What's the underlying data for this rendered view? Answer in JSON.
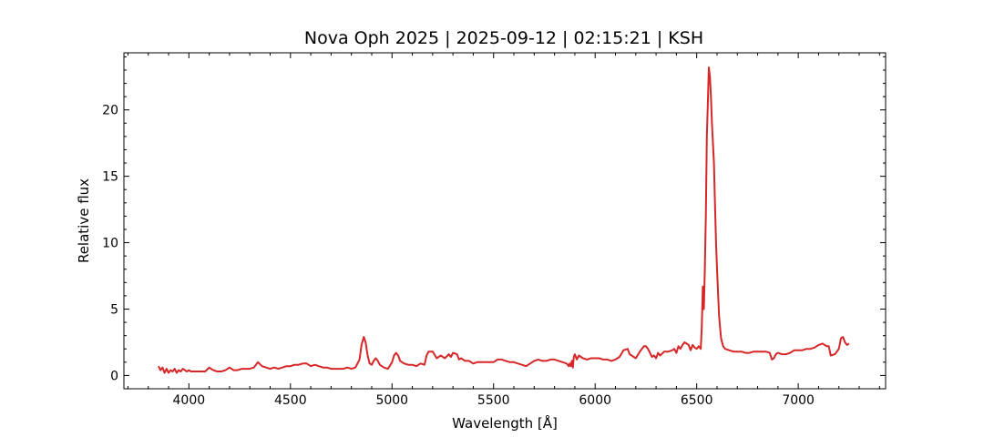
{
  "chart_data": {
    "type": "line",
    "title": "Nova Oph 2025 | 2025-09-12 | 02:15:21 | KSH",
    "xlabel": "Wavelength [Å]",
    "ylabel": "Relative flux",
    "xlim": [
      3680,
      7430
    ],
    "ylim": [
      -1.0,
      24.3
    ],
    "x_ticks": [
      4000,
      4500,
      5000,
      5500,
      6000,
      6500,
      7000
    ],
    "x_tick_labels": [
      "4000",
      "4500",
      "5000",
      "5500",
      "6000",
      "6500",
      "7000"
    ],
    "y_ticks": [
      0,
      5,
      10,
      15,
      20
    ],
    "y_tick_labels": [
      "0",
      "5",
      "10",
      "15",
      "20"
    ],
    "x_minor_step": 100,
    "y_minor_step": 1,
    "tick_direction": "in",
    "ticks_on_all_sides": true,
    "grid": false,
    "series": [
      {
        "color": "#d62728",
        "points": [
          [
            3850,
            0.7
          ],
          [
            3860,
            0.4
          ],
          [
            3870,
            0.6
          ],
          [
            3880,
            0.2
          ],
          [
            3890,
            0.5
          ],
          [
            3900,
            0.2
          ],
          [
            3910,
            0.4
          ],
          [
            3920,
            0.3
          ],
          [
            3930,
            0.5
          ],
          [
            3940,
            0.2
          ],
          [
            3950,
            0.4
          ],
          [
            3960,
            0.3
          ],
          [
            3970,
            0.5
          ],
          [
            3980,
            0.4
          ],
          [
            3990,
            0.3
          ],
          [
            4000,
            0.4
          ],
          [
            4010,
            0.3
          ],
          [
            4020,
            0.3
          ],
          [
            4040,
            0.3
          ],
          [
            4060,
            0.3
          ],
          [
            4080,
            0.3
          ],
          [
            4100,
            0.6
          ],
          [
            4120,
            0.4
          ],
          [
            4140,
            0.3
          ],
          [
            4160,
            0.3
          ],
          [
            4180,
            0.4
          ],
          [
            4200,
            0.6
          ],
          [
            4220,
            0.4
          ],
          [
            4240,
            0.4
          ],
          [
            4260,
            0.5
          ],
          [
            4280,
            0.5
          ],
          [
            4300,
            0.5
          ],
          [
            4320,
            0.6
          ],
          [
            4340,
            1.0
          ],
          [
            4360,
            0.7
          ],
          [
            4380,
            0.6
          ],
          [
            4400,
            0.5
          ],
          [
            4420,
            0.6
          ],
          [
            4440,
            0.5
          ],
          [
            4460,
            0.6
          ],
          [
            4480,
            0.7
          ],
          [
            4500,
            0.7
          ],
          [
            4520,
            0.8
          ],
          [
            4540,
            0.8
          ],
          [
            4560,
            0.9
          ],
          [
            4580,
            0.9
          ],
          [
            4600,
            0.7
          ],
          [
            4620,
            0.8
          ],
          [
            4640,
            0.7
          ],
          [
            4660,
            0.6
          ],
          [
            4680,
            0.6
          ],
          [
            4700,
            0.5
          ],
          [
            4720,
            0.5
          ],
          [
            4740,
            0.5
          ],
          [
            4760,
            0.5
          ],
          [
            4780,
            0.6
          ],
          [
            4800,
            0.5
          ],
          [
            4820,
            0.6
          ],
          [
            4840,
            1.2
          ],
          [
            4850,
            2.3
          ],
          [
            4861,
            2.9
          ],
          [
            4870,
            2.5
          ],
          [
            4880,
            1.5
          ],
          [
            4890,
            0.9
          ],
          [
            4900,
            0.8
          ],
          [
            4910,
            1.1
          ],
          [
            4920,
            1.3
          ],
          [
            4930,
            1.1
          ],
          [
            4940,
            0.8
          ],
          [
            4960,
            0.6
          ],
          [
            4980,
            0.5
          ],
          [
            5000,
            1.0
          ],
          [
            5010,
            1.5
          ],
          [
            5020,
            1.7
          ],
          [
            5030,
            1.5
          ],
          [
            5040,
            1.1
          ],
          [
            5060,
            0.9
          ],
          [
            5080,
            0.8
          ],
          [
            5100,
            0.8
          ],
          [
            5120,
            0.7
          ],
          [
            5140,
            0.9
          ],
          [
            5160,
            0.8
          ],
          [
            5170,
            1.5
          ],
          [
            5180,
            1.8
          ],
          [
            5200,
            1.8
          ],
          [
            5220,
            1.3
          ],
          [
            5240,
            1.5
          ],
          [
            5260,
            1.3
          ],
          [
            5280,
            1.6
          ],
          [
            5290,
            1.4
          ],
          [
            5300,
            1.7
          ],
          [
            5320,
            1.6
          ],
          [
            5330,
            1.2
          ],
          [
            5340,
            1.3
          ],
          [
            5360,
            1.1
          ],
          [
            5380,
            1.1
          ],
          [
            5400,
            0.9
          ],
          [
            5420,
            1.0
          ],
          [
            5440,
            1.0
          ],
          [
            5460,
            1.0
          ],
          [
            5480,
            1.0
          ],
          [
            5500,
            1.0
          ],
          [
            5520,
            1.2
          ],
          [
            5540,
            1.2
          ],
          [
            5560,
            1.1
          ],
          [
            5580,
            1.0
          ],
          [
            5600,
            1.0
          ],
          [
            5620,
            0.9
          ],
          [
            5640,
            0.8
          ],
          [
            5660,
            0.7
          ],
          [
            5680,
            0.9
          ],
          [
            5700,
            1.1
          ],
          [
            5720,
            1.2
          ],
          [
            5740,
            1.1
          ],
          [
            5760,
            1.1
          ],
          [
            5780,
            1.2
          ],
          [
            5800,
            1.2
          ],
          [
            5820,
            1.1
          ],
          [
            5840,
            1.0
          ],
          [
            5860,
            0.9
          ],
          [
            5870,
            0.7
          ],
          [
            5875,
            0.9
          ],
          [
            5880,
            0.7
          ],
          [
            5885,
            1.1
          ],
          [
            5890,
            0.6
          ],
          [
            5895,
            1.4
          ],
          [
            5900,
            1.6
          ],
          [
            5910,
            1.2
          ],
          [
            5920,
            1.5
          ],
          [
            5940,
            1.3
          ],
          [
            5960,
            1.2
          ],
          [
            5980,
            1.3
          ],
          [
            6000,
            1.3
          ],
          [
            6020,
            1.3
          ],
          [
            6040,
            1.2
          ],
          [
            6060,
            1.2
          ],
          [
            6080,
            1.1
          ],
          [
            6100,
            1.2
          ],
          [
            6120,
            1.4
          ],
          [
            6140,
            1.9
          ],
          [
            6160,
            2.0
          ],
          [
            6170,
            1.6
          ],
          [
            6180,
            1.5
          ],
          [
            6200,
            1.3
          ],
          [
            6220,
            1.8
          ],
          [
            6240,
            2.2
          ],
          [
            6250,
            2.2
          ],
          [
            6260,
            2.0
          ],
          [
            6270,
            1.7
          ],
          [
            6280,
            1.4
          ],
          [
            6290,
            1.5
          ],
          [
            6300,
            1.3
          ],
          [
            6310,
            1.7
          ],
          [
            6320,
            1.5
          ],
          [
            6340,
            1.8
          ],
          [
            6360,
            1.8
          ],
          [
            6380,
            1.9
          ],
          [
            6390,
            2.0
          ],
          [
            6400,
            1.7
          ],
          [
            6410,
            2.2
          ],
          [
            6420,
            2.0
          ],
          [
            6430,
            2.3
          ],
          [
            6440,
            2.5
          ],
          [
            6450,
            2.4
          ],
          [
            6460,
            2.3
          ],
          [
            6470,
            1.9
          ],
          [
            6480,
            2.3
          ],
          [
            6490,
            2.1
          ],
          [
            6500,
            2.0
          ],
          [
            6510,
            2.2
          ],
          [
            6520,
            2.0
          ],
          [
            6525,
            3.5
          ],
          [
            6530,
            6.7
          ],
          [
            6535,
            5.0
          ],
          [
            6540,
            8.0
          ],
          [
            6545,
            12.0
          ],
          [
            6550,
            18.0
          ],
          [
            6555,
            20.5
          ],
          [
            6560,
            23.2
          ],
          [
            6565,
            22.5
          ],
          [
            6570,
            21.0
          ],
          [
            6575,
            19.0
          ],
          [
            6580,
            17.5
          ],
          [
            6585,
            16.0
          ],
          [
            6590,
            13.0
          ],
          [
            6595,
            10.0
          ],
          [
            6600,
            8.0
          ],
          [
            6610,
            4.5
          ],
          [
            6620,
            2.8
          ],
          [
            6630,
            2.2
          ],
          [
            6640,
            2.0
          ],
          [
            6660,
            1.9
          ],
          [
            6680,
            1.8
          ],
          [
            6700,
            1.8
          ],
          [
            6720,
            1.8
          ],
          [
            6740,
            1.7
          ],
          [
            6760,
            1.7
          ],
          [
            6780,
            1.8
          ],
          [
            6800,
            1.8
          ],
          [
            6820,
            1.8
          ],
          [
            6840,
            1.8
          ],
          [
            6860,
            1.7
          ],
          [
            6870,
            1.2
          ],
          [
            6880,
            1.3
          ],
          [
            6890,
            1.6
          ],
          [
            6900,
            1.7
          ],
          [
            6920,
            1.6
          ],
          [
            6940,
            1.6
          ],
          [
            6960,
            1.7
          ],
          [
            6980,
            1.9
          ],
          [
            7000,
            1.9
          ],
          [
            7020,
            1.9
          ],
          [
            7040,
            2.0
          ],
          [
            7060,
            2.0
          ],
          [
            7080,
            2.1
          ],
          [
            7100,
            2.3
          ],
          [
            7120,
            2.4
          ],
          [
            7140,
            2.2
          ],
          [
            7150,
            2.2
          ],
          [
            7160,
            1.5
          ],
          [
            7180,
            1.6
          ],
          [
            7200,
            2.0
          ],
          [
            7210,
            2.8
          ],
          [
            7220,
            2.9
          ],
          [
            7230,
            2.5
          ],
          [
            7240,
            2.3
          ],
          [
            7250,
            2.4
          ]
        ]
      }
    ]
  }
}
